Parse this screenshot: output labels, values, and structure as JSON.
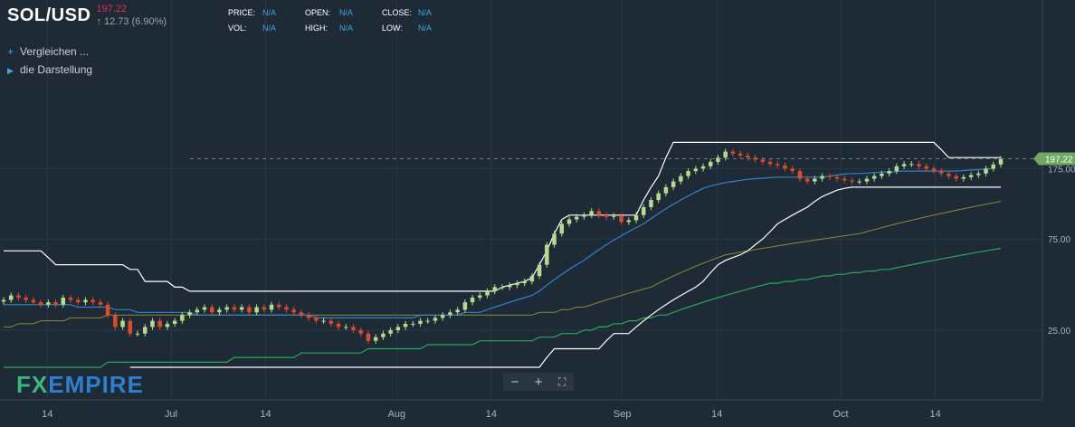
{
  "header": {
    "symbol": "SOL/USD",
    "price": "197.22",
    "change": "12.73 (6.90%)",
    "change_arrow": "↑"
  },
  "ohlc": {
    "price_label": "PRICE:",
    "price_value": "N/A",
    "vol_label": "VOL:",
    "vol_value": "N/A",
    "open_label": "OPEN:",
    "open_value": "N/A",
    "high_label": "HIGH:",
    "high_value": "N/A",
    "close_label": "CLOSE:",
    "close_value": "N/A",
    "low_label": "LOW:",
    "low_value": "N/A"
  },
  "sidebar": {
    "compare_label": "Vergleichen ...",
    "compare_icon": "plus-icon",
    "display_label": "die Darstellung",
    "display_icon": "triangle-right-icon"
  },
  "controls": {
    "zoom_out": "−",
    "zoom_in": "+",
    "fullscreen": "⛶"
  },
  "logo": {
    "fx": "FX",
    "empire": "EMPIRE"
  },
  "colors": {
    "background": "#1e2a36",
    "up": "#b5dc8c",
    "down": "#e04a2a",
    "ma_blue": "#2e86c8",
    "ma_olive": "#8c8a3a",
    "ma_green": "#27a85a",
    "channel": "#ffffff"
  },
  "chart_data": {
    "type": "candlestick",
    "y_scale": "log",
    "ylim": [
      14,
      230
    ],
    "y_ticks": [
      "25.00",
      "75.00",
      "175.00"
    ],
    "y_tick_values": [
      25,
      75,
      175
    ],
    "x_ticks": [
      "14",
      "Jul",
      "14",
      "Aug",
      "14",
      "Sep",
      "14",
      "Oct",
      "14"
    ],
    "last_price_label": "197.22",
    "last_price": 197.22,
    "start_date": "2021-06-08",
    "end_date": "2021-10-23",
    "closes": [
      36,
      38,
      37,
      36,
      35,
      34,
      35,
      34,
      37,
      36,
      35,
      36,
      35,
      34,
      30,
      26,
      28,
      24,
      24,
      26,
      28,
      26,
      27,
      28,
      30,
      31,
      32,
      33,
      31,
      32,
      33,
      32,
      33,
      31,
      33,
      32,
      34,
      33,
      32,
      31,
      30,
      29,
      28,
      28,
      27,
      26,
      26,
      25,
      24,
      22,
      23,
      24,
      25,
      26,
      27,
      27,
      28,
      28,
      29,
      30,
      31,
      32,
      35,
      37,
      38,
      40,
      42,
      42,
      43,
      44,
      45,
      48,
      55,
      70,
      80,
      90,
      95,
      98,
      100,
      105,
      100,
      98,
      99,
      92,
      94,
      100,
      110,
      120,
      130,
      140,
      150,
      160,
      170,
      175,
      180,
      190,
      200,
      215,
      210,
      205,
      200,
      195,
      190,
      185,
      182,
      175,
      170,
      155,
      150,
      155,
      160,
      158,
      155,
      152,
      150,
      150,
      155,
      160,
      165,
      170,
      180,
      185,
      185,
      180,
      175,
      170,
      165,
      160,
      155,
      158,
      162,
      165,
      175,
      184,
      197
    ],
    "bollinger_upper": [
      65,
      65,
      65,
      65,
      65,
      65,
      60,
      55,
      55,
      55,
      55,
      55,
      55,
      55,
      55,
      55,
      55,
      52,
      52,
      45,
      45,
      45,
      45,
      42,
      42,
      40,
      40,
      40,
      40,
      40,
      40,
      40,
      40,
      40,
      40,
      40,
      40,
      40,
      40,
      40,
      40,
      40,
      40,
      40,
      40,
      40,
      40,
      40,
      40,
      40,
      40,
      40,
      40,
      40,
      40,
      40,
      40,
      40,
      40,
      40,
      40,
      40,
      40,
      40,
      40,
      40,
      40,
      42,
      43,
      44,
      45,
      47,
      55,
      65,
      80,
      95,
      100,
      100,
      100,
      100,
      100,
      100,
      100,
      100,
      100,
      100,
      120,
      140,
      160,
      200,
      240,
      240,
      240,
      240,
      240,
      240,
      240,
      240,
      240,
      240,
      240,
      240,
      240,
      240,
      240,
      240,
      240,
      240,
      240,
      240,
      240,
      240,
      240,
      240,
      240,
      240,
      240,
      240,
      240,
      240,
      240,
      240,
      240,
      240,
      240,
      240,
      220,
      200,
      200,
      200,
      200,
      200,
      200,
      200,
      200
    ],
    "bollinger_lower": [
      null,
      null,
      null,
      null,
      null,
      null,
      null,
      null,
      null,
      null,
      null,
      null,
      null,
      null,
      null,
      null,
      null,
      16,
      16,
      16,
      16,
      16,
      16,
      16,
      16,
      16,
      16,
      16,
      16,
      16,
      16,
      16,
      16,
      16,
      16,
      16,
      16,
      16,
      16,
      16,
      16,
      16,
      16,
      16,
      16,
      16,
      16,
      16,
      16,
      16,
      16,
      16,
      16,
      16,
      16,
      16,
      16,
      16,
      16,
      16,
      16,
      16,
      16,
      16,
      16,
      16,
      16,
      16,
      16,
      16,
      16,
      16,
      16,
      18,
      20,
      20,
      20,
      20,
      20,
      20,
      20,
      22,
      24,
      24,
      24,
      26,
      28,
      30,
      32,
      34,
      36,
      38,
      40,
      42,
      45,
      50,
      55,
      58,
      60,
      62,
      65,
      70,
      75,
      82,
      90,
      95,
      100,
      105,
      110,
      118,
      125,
      130,
      135,
      138,
      140,
      140,
      140,
      140,
      140,
      140,
      140,
      140,
      140,
      140,
      140,
      140,
      140,
      140,
      140,
      140,
      140,
      140,
      140,
      140,
      140
    ],
    "ma_blue": [
      34,
      34,
      34,
      34,
      34,
      34,
      34,
      34,
      34,
      34,
      33,
      33,
      33,
      33,
      33,
      32,
      32,
      32,
      31,
      31,
      31,
      31,
      31,
      31,
      31,
      31,
      30,
      30,
      30,
      30,
      30,
      30,
      30,
      30,
      30,
      30,
      30,
      30,
      30,
      30,
      30,
      30,
      29,
      29,
      29,
      29,
      29,
      29,
      29,
      29,
      29,
      29,
      29,
      29,
      29,
      29,
      30,
      30,
      30,
      30,
      30,
      30,
      31,
      31,
      31,
      32,
      33,
      34,
      35,
      36,
      37,
      38,
      40,
      43,
      46,
      49,
      52,
      55,
      58,
      62,
      66,
      70,
      74,
      78,
      82,
      86,
      90,
      96,
      102,
      108,
      114,
      120,
      126,
      132,
      138,
      142,
      145,
      148,
      150,
      152,
      154,
      155,
      156,
      157,
      158,
      158,
      158,
      158,
      158,
      158,
      158,
      160,
      162,
      164,
      165,
      165,
      166,
      167,
      168,
      168,
      169,
      170,
      170,
      170,
      170,
      170,
      170,
      170,
      170,
      171,
      172,
      173,
      174,
      175
    ],
    "ma_olive": [
      26,
      26,
      27,
      27,
      27,
      28,
      28,
      28,
      28,
      29,
      29,
      29,
      29,
      29,
      30,
      30,
      30,
      30,
      30,
      30,
      30,
      30,
      30,
      30,
      30,
      30,
      30,
      30,
      30,
      30,
      30,
      30,
      30,
      30,
      30,
      30,
      30,
      30,
      30,
      30,
      30,
      30,
      30,
      30,
      30,
      30,
      30,
      30,
      30,
      30,
      30,
      30,
      30,
      30,
      30,
      30,
      30,
      30,
      30,
      30,
      30,
      30,
      30,
      30,
      30,
      30,
      30,
      30,
      30,
      30,
      30,
      30,
      31,
      31,
      31,
      32,
      32,
      33,
      33,
      34,
      35,
      36,
      37,
      38,
      39,
      40,
      41,
      42,
      44,
      46,
      48,
      50,
      52,
      54,
      56,
      58,
      60,
      62,
      63,
      64,
      65,
      66,
      67,
      68,
      69,
      70,
      71,
      72,
      73,
      74,
      75,
      76,
      77,
      78,
      79,
      80,
      82,
      84,
      86,
      88,
      90,
      92,
      94,
      96,
      98,
      100,
      102,
      104,
      106,
      108,
      110,
      112,
      114,
      116,
      118
    ],
    "ma_green": [
      16,
      16,
      16,
      16,
      16,
      16,
      16,
      16,
      16,
      16,
      16,
      16,
      16,
      16,
      17,
      17,
      17,
      17,
      17,
      17,
      17,
      17,
      17,
      17,
      17,
      17,
      17,
      17,
      17,
      17,
      17,
      18,
      18,
      18,
      18,
      18,
      18,
      18,
      18,
      18,
      19,
      19,
      19,
      19,
      19,
      19,
      19,
      19,
      19,
      20,
      20,
      20,
      20,
      20,
      20,
      20,
      20,
      21,
      21,
      21,
      21,
      21,
      21,
      21,
      22,
      22,
      22,
      22,
      22,
      22,
      22,
      22,
      23,
      23,
      23,
      24,
      24,
      24,
      25,
      25,
      26,
      26,
      27,
      27,
      28,
      28,
      29,
      29,
      30,
      30,
      31,
      32,
      33,
      34,
      35,
      36,
      37,
      38,
      39,
      40,
      41,
      42,
      43,
      44,
      44,
      45,
      45,
      46,
      46,
      47,
      48,
      48,
      49,
      49,
      50,
      50,
      51,
      51,
      52,
      52,
      53,
      54,
      55,
      56,
      57,
      58,
      59,
      60,
      61,
      62,
      63,
      64,
      65,
      66,
      67
    ]
  }
}
